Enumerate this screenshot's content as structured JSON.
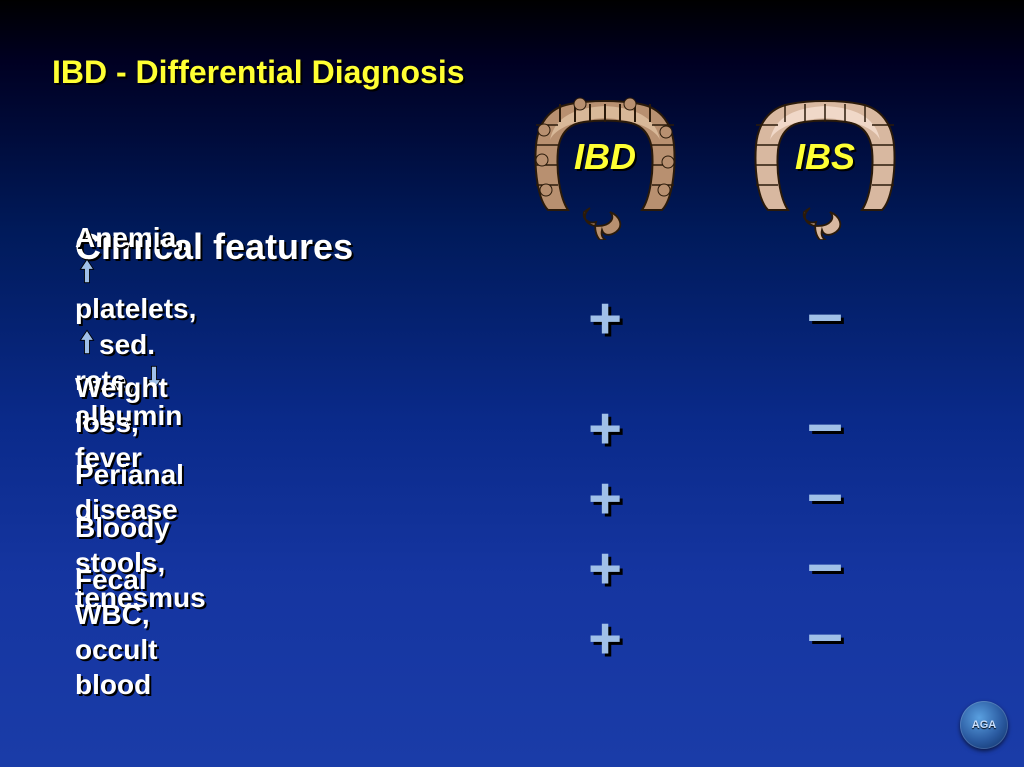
{
  "title": "IBD - Differential Diagnosis",
  "section_heading": "Clinical features",
  "columns": {
    "ibd_label": "IBD",
    "ibs_label": "IBS"
  },
  "arrows": {
    "up_color": "#a0c0e8",
    "down_color": "#a0c0e8"
  },
  "features": [
    {
      "segments": [
        {
          "text": "Anemia, "
        },
        {
          "arrow": "up"
        },
        {
          "text": "platelets,"
        },
        {
          "break": true
        },
        {
          "arrow": "up"
        },
        {
          "text": "sed. rate, "
        },
        {
          "arrow": "down"
        },
        {
          "text": "albumin"
        }
      ],
      "ibd": "+",
      "ibs": "–",
      "height": 96,
      "gap_after": 28
    },
    {
      "segments": [
        {
          "text": "Weight loss, fever"
        }
      ],
      "ibd": "+",
      "ibs": "–",
      "height": 40,
      "gap_after": 30
    },
    {
      "segments": [
        {
          "text": "Perianal disease"
        }
      ],
      "ibd": "+",
      "ibs": "–",
      "height": 40,
      "gap_after": 30
    },
    {
      "segments": [
        {
          "text": "Bloody stools, tenesmus"
        }
      ],
      "ibd": "+",
      "ibs": "–",
      "height": 40,
      "gap_after": 30
    },
    {
      "segments": [
        {
          "text": "Fecal WBC, occult blood"
        }
      ],
      "ibd": "+",
      "ibs": "–",
      "height": 40,
      "gap_after": 0
    }
  ],
  "symbol_color": "#a0c0e8",
  "logo_text": "AGA",
  "colon_art": {
    "ibd_fill": "#b89070",
    "ibd_highlight": "#d8b898",
    "ibs_fill": "#d8b8a0",
    "ibs_highlight": "#f0d8c8",
    "stroke": "#2a1a0a"
  },
  "row_tops": [
    0,
    124,
    194,
    264,
    334
  ],
  "sym_tops": [
    14,
    124,
    194,
    264,
    334
  ]
}
